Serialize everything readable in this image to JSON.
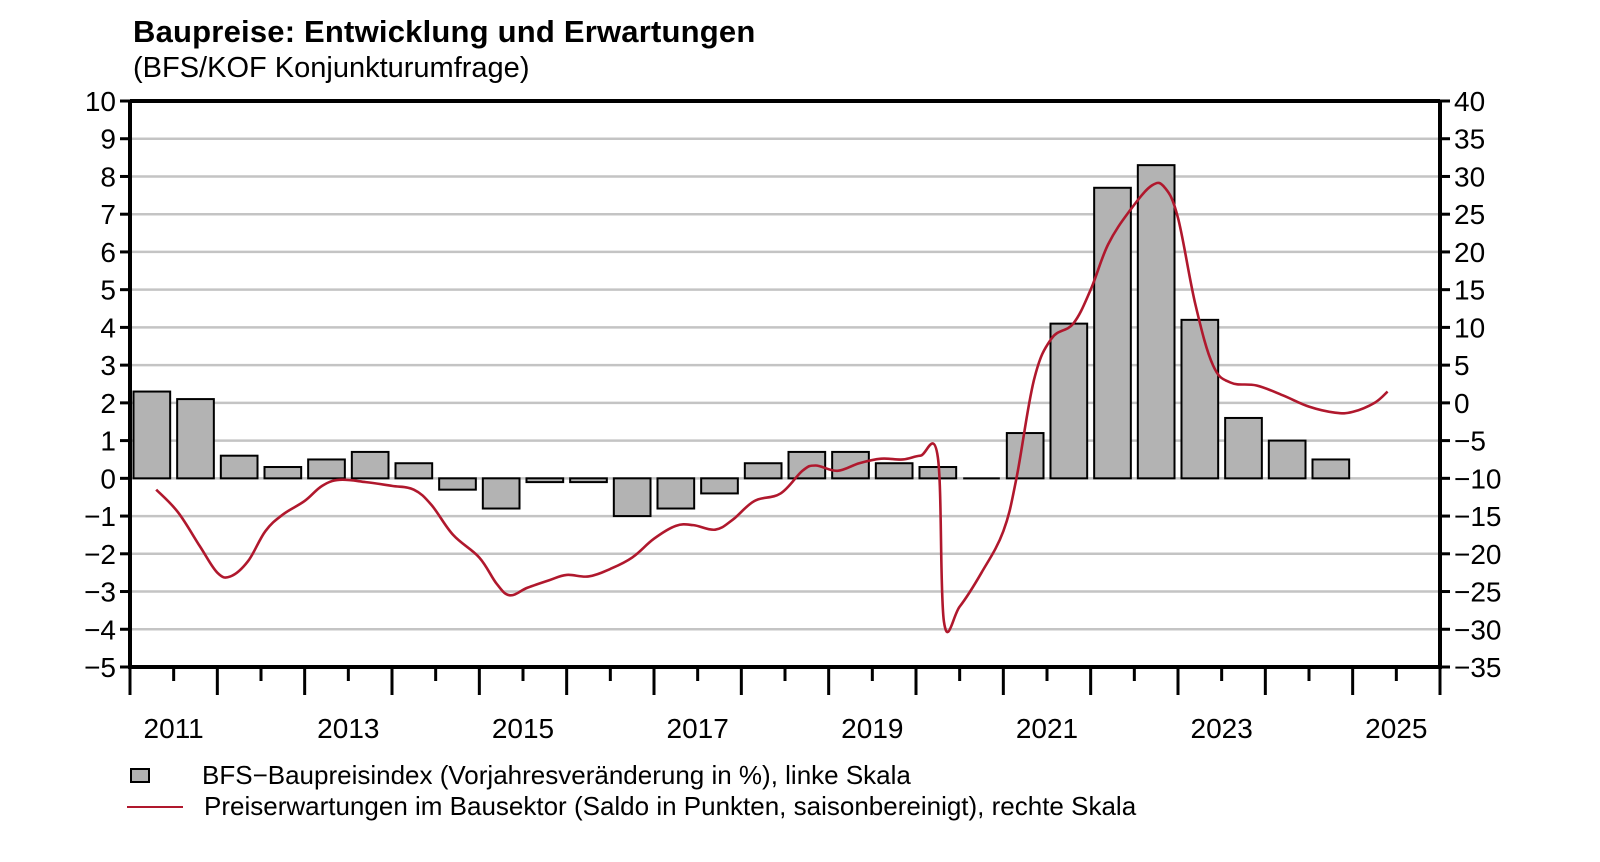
{
  "chart_data": {
    "type": "bar+line",
    "title": "Baupreise: Entwicklung und Erwartungen",
    "subtitle": "(BFS/KOF Konjunkturumfrage)",
    "left_axis": {
      "range": [
        -5,
        10
      ],
      "ticks": [
        "10",
        "9",
        "8",
        "7",
        "6",
        "5",
        "4",
        "3",
        "2",
        "1",
        "0",
        "−1",
        "−2",
        "−3",
        "−4",
        "−5"
      ]
    },
    "right_axis": {
      "range": [
        -35,
        40
      ],
      "ticks": [
        "40",
        "35",
        "30",
        "25",
        "20",
        "15",
        "10",
        "5",
        "0",
        "−5",
        "−10",
        "−15",
        "−20",
        "−25",
        "−30",
        "−35"
      ]
    },
    "x_range": [
      2010.0,
      2025.0
    ],
    "x_tick_labels": [
      "2011",
      "2013",
      "2015",
      "2017",
      "2019",
      "2021",
      "2023",
      "2025"
    ],
    "grid": true,
    "bars": {
      "name": "BFS−Baupreisindex (Vorjahresveränderung in %), linke Skala",
      "color": "#b3b3b3",
      "points": [
        {
          "x": 2010.25,
          "y": 2.3
        },
        {
          "x": 2010.75,
          "y": 2.1
        },
        {
          "x": 2011.25,
          "y": 0.6
        },
        {
          "x": 2011.75,
          "y": 0.3
        },
        {
          "x": 2012.25,
          "y": 0.5
        },
        {
          "x": 2012.75,
          "y": 0.7
        },
        {
          "x": 2013.25,
          "y": 0.4
        },
        {
          "x": 2013.75,
          "y": -0.3
        },
        {
          "x": 2014.25,
          "y": -0.8
        },
        {
          "x": 2014.75,
          "y": -0.1
        },
        {
          "x": 2015.25,
          "y": -0.1
        },
        {
          "x": 2015.75,
          "y": -1.0
        },
        {
          "x": 2016.25,
          "y": -0.8
        },
        {
          "x": 2016.75,
          "y": -0.4
        },
        {
          "x": 2017.25,
          "y": 0.4
        },
        {
          "x": 2017.75,
          "y": 0.7
        },
        {
          "x": 2018.25,
          "y": 0.7
        },
        {
          "x": 2018.75,
          "y": 0.4
        },
        {
          "x": 2019.25,
          "y": 0.3
        },
        {
          "x": 2019.75,
          "y": 0.0
        },
        {
          "x": 2020.25,
          "y": 1.2
        },
        {
          "x": 2020.75,
          "y": 4.1
        },
        {
          "x": 2021.25,
          "y": 7.7
        },
        {
          "x": 2021.75,
          "y": 8.3
        },
        {
          "x": 2022.25,
          "y": 4.2
        },
        {
          "x": 2022.75,
          "y": 1.6
        },
        {
          "x": 2023.25,
          "y": 1.0
        },
        {
          "x": 2023.75,
          "y": 0.5
        }
      ]
    },
    "line": {
      "name": "Preiserwartungen im Bausektor (Saldo in Punkten, saisonbereinigt), rechte Skala",
      "color": "#b0182d",
      "points": [
        {
          "x": 2010.3,
          "y": -11.5
        },
        {
          "x": 2010.55,
          "y": -14.5
        },
        {
          "x": 2010.8,
          "y": -19.0
        },
        {
          "x": 2011.0,
          "y": -22.5
        },
        {
          "x": 2011.15,
          "y": -23.0
        },
        {
          "x": 2011.35,
          "y": -21.0
        },
        {
          "x": 2011.55,
          "y": -17.0
        },
        {
          "x": 2011.75,
          "y": -14.8
        },
        {
          "x": 2012.0,
          "y": -13.0
        },
        {
          "x": 2012.2,
          "y": -11.0
        },
        {
          "x": 2012.4,
          "y": -10.2
        },
        {
          "x": 2012.7,
          "y": -10.5
        },
        {
          "x": 2013.0,
          "y": -11.0
        },
        {
          "x": 2013.25,
          "y": -11.5
        },
        {
          "x": 2013.45,
          "y": -13.5
        },
        {
          "x": 2013.7,
          "y": -17.5
        },
        {
          "x": 2014.0,
          "y": -20.5
        },
        {
          "x": 2014.2,
          "y": -24.0
        },
        {
          "x": 2014.35,
          "y": -25.5
        },
        {
          "x": 2014.55,
          "y": -24.5
        },
        {
          "x": 2014.8,
          "y": -23.5
        },
        {
          "x": 2015.0,
          "y": -22.8
        },
        {
          "x": 2015.25,
          "y": -23.0
        },
        {
          "x": 2015.5,
          "y": -22.0
        },
        {
          "x": 2015.75,
          "y": -20.5
        },
        {
          "x": 2016.0,
          "y": -18.0
        },
        {
          "x": 2016.25,
          "y": -16.3
        },
        {
          "x": 2016.45,
          "y": -16.2
        },
        {
          "x": 2016.7,
          "y": -16.8
        },
        {
          "x": 2016.9,
          "y": -15.5
        },
        {
          "x": 2017.15,
          "y": -13.0
        },
        {
          "x": 2017.45,
          "y": -12.0
        },
        {
          "x": 2017.7,
          "y": -9.0
        },
        {
          "x": 2017.85,
          "y": -8.3
        },
        {
          "x": 2018.1,
          "y": -9.0
        },
        {
          "x": 2018.35,
          "y": -8.0
        },
        {
          "x": 2018.6,
          "y": -7.4
        },
        {
          "x": 2018.85,
          "y": -7.5
        },
        {
          "x": 2019.05,
          "y": -7.0
        },
        {
          "x": 2019.25,
          "y": -7.2
        },
        {
          "x": 2019.32,
          "y": -29.0
        },
        {
          "x": 2019.5,
          "y": -27.0
        },
        {
          "x": 2019.75,
          "y": -22.5
        },
        {
          "x": 2020.0,
          "y": -17.0
        },
        {
          "x": 2020.15,
          "y": -10.0
        },
        {
          "x": 2020.35,
          "y": 3.0
        },
        {
          "x": 2020.55,
          "y": 8.5
        },
        {
          "x": 2020.8,
          "y": 10.5
        },
        {
          "x": 2021.0,
          "y": 15.0
        },
        {
          "x": 2021.2,
          "y": 21.0
        },
        {
          "x": 2021.45,
          "y": 25.5
        },
        {
          "x": 2021.7,
          "y": 28.8
        },
        {
          "x": 2021.85,
          "y": 28.5
        },
        {
          "x": 2022.0,
          "y": 24.5
        },
        {
          "x": 2022.2,
          "y": 13.0
        },
        {
          "x": 2022.4,
          "y": 5.0
        },
        {
          "x": 2022.6,
          "y": 2.7
        },
        {
          "x": 2022.9,
          "y": 2.3
        },
        {
          "x": 2023.2,
          "y": 1.0
        },
        {
          "x": 2023.5,
          "y": -0.5
        },
        {
          "x": 2023.8,
          "y": -1.3
        },
        {
          "x": 2024.0,
          "y": -1.2
        },
        {
          "x": 2024.25,
          "y": 0.0
        },
        {
          "x": 2024.4,
          "y": 1.5
        }
      ]
    }
  }
}
